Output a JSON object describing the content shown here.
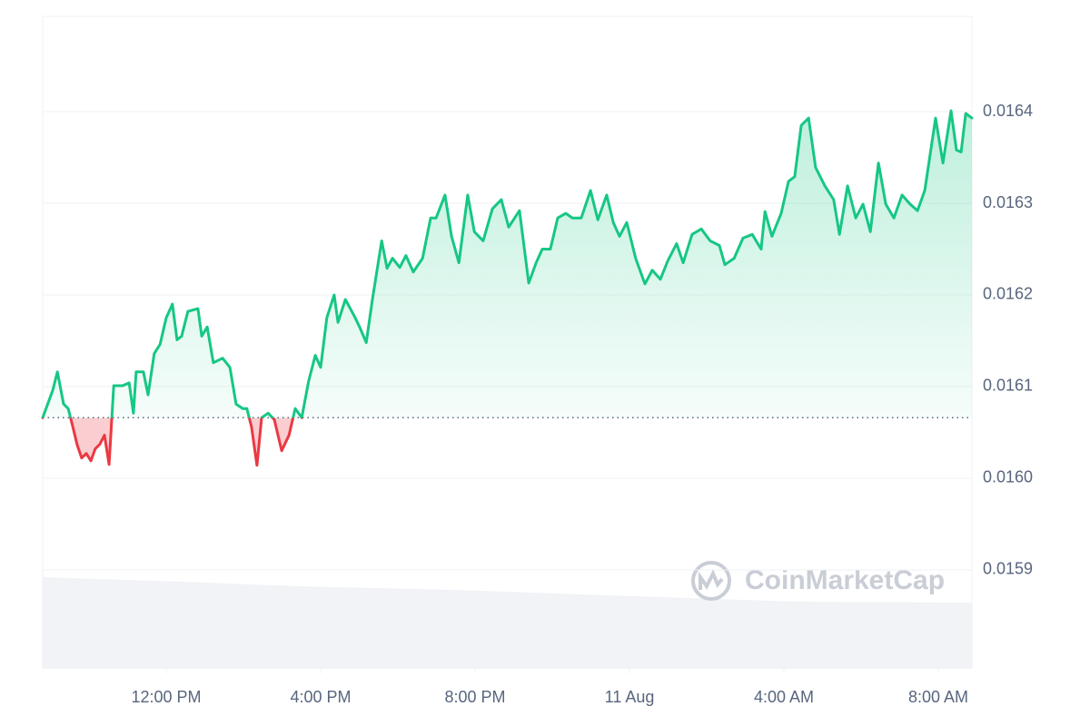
{
  "chart_data": {
    "type": "line",
    "watermark": "CoinMarketCap",
    "x": [
      8.8,
      9.06,
      9.18,
      9.34,
      9.46,
      9.58,
      9.69,
      9.81,
      9.93,
      10.05,
      10.16,
      10.28,
      10.4,
      10.52,
      10.64,
      10.87,
      11.04,
      11.15,
      11.22,
      11.41,
      11.53,
      11.69,
      11.84,
      12.0,
      12.16,
      12.28,
      12.4,
      12.56,
      12.82,
      12.92,
      13.06,
      13.22,
      13.46,
      13.65,
      13.81,
      13.98,
      14.09,
      14.21,
      14.35,
      14.47,
      14.64,
      14.8,
      14.99,
      15.18,
      15.34,
      15.51,
      15.69,
      15.86,
      16.0,
      16.16,
      16.35,
      16.45,
      16.64,
      16.87,
      17.01,
      17.18,
      17.34,
      17.58,
      17.72,
      17.86,
      18.05,
      18.21,
      18.4,
      18.64,
      18.85,
      18.99,
      19.22,
      19.39,
      19.58,
      19.81,
      19.98,
      20.21,
      20.45,
      20.68,
      20.87,
      21.15,
      21.39,
      21.58,
      21.74,
      21.95,
      22.14,
      22.35,
      22.52,
      22.75,
      22.99,
      23.18,
      23.41,
      23.58,
      23.74,
      23.93,
      24.16,
      24.4,
      24.59,
      24.8,
      24.99,
      25.22,
      25.39,
      25.62,
      25.86,
      26.09,
      26.33,
      26.47,
      26.71,
      26.94,
      27.18,
      27.41,
      27.51,
      27.69,
      27.93,
      28.12,
      28.28,
      28.45,
      28.64,
      28.82,
      29.06,
      29.29,
      29.44,
      29.65,
      29.86,
      30.05,
      30.24,
      30.45,
      30.64,
      30.85,
      31.06,
      31.27,
      31.46,
      31.65,
      31.93,
      32.12,
      32.33,
      32.47,
      32.59,
      32.71,
      32.87
    ],
    "series": [
      {
        "color": "#16c784",
        "down_color": "#ea3943",
        "values": [
          0.016066,
          0.016096,
          0.016116,
          0.016081,
          0.016076,
          0.016056,
          0.016037,
          0.016022,
          0.016027,
          0.016019,
          0.016032,
          0.016037,
          0.016047,
          0.016015,
          0.016101,
          0.016101,
          0.016104,
          0.016071,
          0.016116,
          0.016116,
          0.016091,
          0.016136,
          0.016146,
          0.016175,
          0.01619,
          0.016151,
          0.016155,
          0.016182,
          0.016185,
          0.016155,
          0.016165,
          0.016126,
          0.016131,
          0.016121,
          0.016081,
          0.016076,
          0.016076,
          0.016056,
          0.016014,
          0.016066,
          0.016071,
          0.016064,
          0.01603,
          0.016047,
          0.016076,
          0.016066,
          0.016106,
          0.016134,
          0.016121,
          0.016175,
          0.0162,
          0.01617,
          0.016195,
          0.016177,
          0.016165,
          0.016148,
          0.016195,
          0.016259,
          0.016229,
          0.01624,
          0.01623,
          0.016243,
          0.016225,
          0.01624,
          0.016284,
          0.016284,
          0.016309,
          0.016264,
          0.016235,
          0.016309,
          0.016269,
          0.016259,
          0.016294,
          0.016304,
          0.016274,
          0.016292,
          0.016213,
          0.016235,
          0.01625,
          0.01625,
          0.016284,
          0.016289,
          0.016284,
          0.016284,
          0.016314,
          0.016282,
          0.016309,
          0.016279,
          0.016264,
          0.016279,
          0.01624,
          0.016212,
          0.016227,
          0.016217,
          0.016237,
          0.016256,
          0.016235,
          0.016266,
          0.016272,
          0.016259,
          0.016254,
          0.016233,
          0.01624,
          0.016262,
          0.016266,
          0.01625,
          0.016291,
          0.016264,
          0.016289,
          0.016324,
          0.016329,
          0.016385,
          0.016393,
          0.016339,
          0.016319,
          0.016304,
          0.016266,
          0.016319,
          0.016284,
          0.016299,
          0.016269,
          0.016344,
          0.016299,
          0.016284,
          0.016309,
          0.016299,
          0.016292,
          0.016314,
          0.016393,
          0.016344,
          0.016401,
          0.016358,
          0.016356,
          0.016398,
          0.016393
        ]
      }
    ],
    "baseline": 0.016066,
    "xlim": [
      8.8,
      32.87
    ],
    "xticks": [
      {
        "value": 12,
        "label": "12:00 PM"
      },
      {
        "value": 16,
        "label": "4:00 PM"
      },
      {
        "value": 20,
        "label": "8:00 PM"
      },
      {
        "value": 24,
        "label": "11 Aug"
      },
      {
        "value": 28,
        "label": "4:00 AM"
      },
      {
        "value": 32,
        "label": "8:00 AM"
      }
    ],
    "ylim": [
      0.015792,
      0.016504
    ],
    "yticks": [
      0.0159,
      {
        "value": 0.016,
        "label": "0.0160"
      },
      0.0161,
      0.0162,
      0.0163,
      0.0164
    ],
    "grid": true
  }
}
